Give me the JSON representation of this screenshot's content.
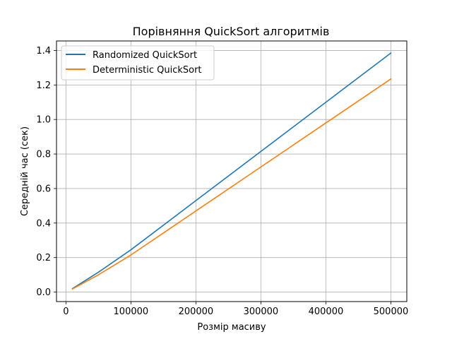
{
  "chart_data": {
    "type": "line",
    "title": "Порівняння QuickSort алгоритмів",
    "xlabel": "Розмір масиву",
    "ylabel": "Середній час (сек)",
    "xlim": [
      -14500,
      524500
    ],
    "ylim": [
      -0.055,
      1.455
    ],
    "x_ticks": [
      0,
      100000,
      200000,
      300000,
      400000,
      500000
    ],
    "x_tick_labels": [
      "0",
      "100000",
      "200000",
      "300000",
      "400000",
      "500000"
    ],
    "y_ticks": [
      0.0,
      0.2,
      0.4,
      0.6,
      0.8,
      1.0,
      1.2,
      1.4
    ],
    "y_tick_labels": [
      "0.0",
      "0.2",
      "0.4",
      "0.6",
      "0.8",
      "1.0",
      "1.2",
      "1.4"
    ],
    "grid": true,
    "legend_position": "top-left",
    "x": [
      10000,
      50000,
      100000,
      200000,
      300000,
      400000,
      500000
    ],
    "series": [
      {
        "name": "Randomized QuickSort",
        "color": "#1f77b4",
        "values": [
          0.02,
          0.115,
          0.245,
          0.53,
          0.815,
          1.1,
          1.385
        ]
      },
      {
        "name": "Deterministic QuickSort",
        "color": "#ff7f0e",
        "values": [
          0.018,
          0.1,
          0.215,
          0.47,
          0.725,
          0.98,
          1.235
        ]
      }
    ]
  }
}
